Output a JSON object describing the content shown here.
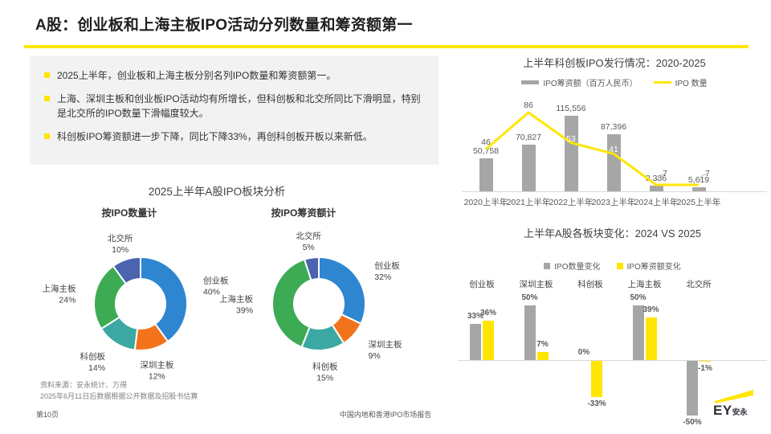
{
  "title": "A股：创业板和上海主板IPO活动分列数量和筹资额第一",
  "bullets": [
    "2025上半年，创业板和上海主板分别名列IPO数量和筹资额第一。",
    "上海、深圳主板和创业板IPO活动均有所增长，但科创板和北交所同比下滑明显，特别是北交所的IPO数量下滑幅度较大。",
    "科创板IPO筹资额进一步下降，同比下降33%，再创科创板开板以来新低。"
  ],
  "donut_section": {
    "title": "2025上半年A股IPO板块分析",
    "left_subtitle": "按IPO数量计",
    "right_subtitle": "按IPO筹资额计"
  },
  "colors": {
    "accent": "#FFE600",
    "bar_gray": "#A6A6A6",
    "axis_gray": "#D9D9D9",
    "board_blue": "#2E86D1",
    "board_orange": "#F2731B",
    "board_teal": "#3BA8A3",
    "board_green": "#3CAB54",
    "board_indigo": "#4C63AE"
  },
  "chart_data": [
    {
      "type": "pie",
      "donut": true,
      "title": "按IPO数量计",
      "labels": [
        "创业板",
        "深圳主板",
        "科创板",
        "上海主板",
        "北交所"
      ],
      "values": [
        40,
        12,
        14,
        24,
        10
      ],
      "unit": "%",
      "colors": [
        "#2E86D1",
        "#F2731B",
        "#3BA8A3",
        "#3CAB54",
        "#4C63AE"
      ]
    },
    {
      "type": "pie",
      "donut": true,
      "title": "按IPO筹资额计",
      "labels": [
        "创业板",
        "深圳主板",
        "科创板",
        "上海主板",
        "北交所"
      ],
      "values": [
        32,
        9,
        15,
        39,
        5
      ],
      "unit": "%",
      "colors": [
        "#2E86D1",
        "#F2731B",
        "#3BA8A3",
        "#3CAB54",
        "#4C63AE"
      ]
    },
    {
      "type": "bar",
      "subtype": "bar-line-combo",
      "title": "上半年科创板IPO发行情况：2020-2025",
      "categories": [
        "2020上半年",
        "2021上半年",
        "2022上半年",
        "2023上半年",
        "2024上半年",
        "2025上半年"
      ],
      "series": [
        {
          "name": "IPO筹资额（百万人民币）",
          "type": "bar",
          "color": "#A6A6A6",
          "values": [
            50758,
            70827,
            115556,
            87396,
            8336,
            5619
          ]
        },
        {
          "name": "IPO 数量",
          "type": "line",
          "color": "#FFE600",
          "values": [
            46,
            86,
            53,
            41,
            7,
            7
          ]
        }
      ],
      "legend_position": "top",
      "grid": false
    },
    {
      "type": "bar",
      "subtype": "grouped-pos-neg",
      "title": "上半年A股各板块变化：2024 VS 2025",
      "categories": [
        "创业板",
        "深圳主板",
        "科创板",
        "上海主板",
        "北交所"
      ],
      "series": [
        {
          "name": "IPO数量变化",
          "color": "#A6A6A6",
          "values": [
            33,
            50,
            0,
            50,
            -50
          ]
        },
        {
          "name": "IPO筹资额变化",
          "color": "#FFE600",
          "values": [
            36,
            7,
            -33,
            39,
            -1
          ]
        }
      ],
      "value_suffix": "%",
      "legend_position": "top",
      "grid": false
    }
  ],
  "footer": {
    "source_line1": "资料来源：安永统计、万得",
    "source_line2": "2025年6月11日后数据根据公开数据及招股书估算",
    "page": "第10页",
    "center": "中国内地和香港IPO市场报告",
    "logo_main": "EY",
    "logo_sub": "安永"
  }
}
